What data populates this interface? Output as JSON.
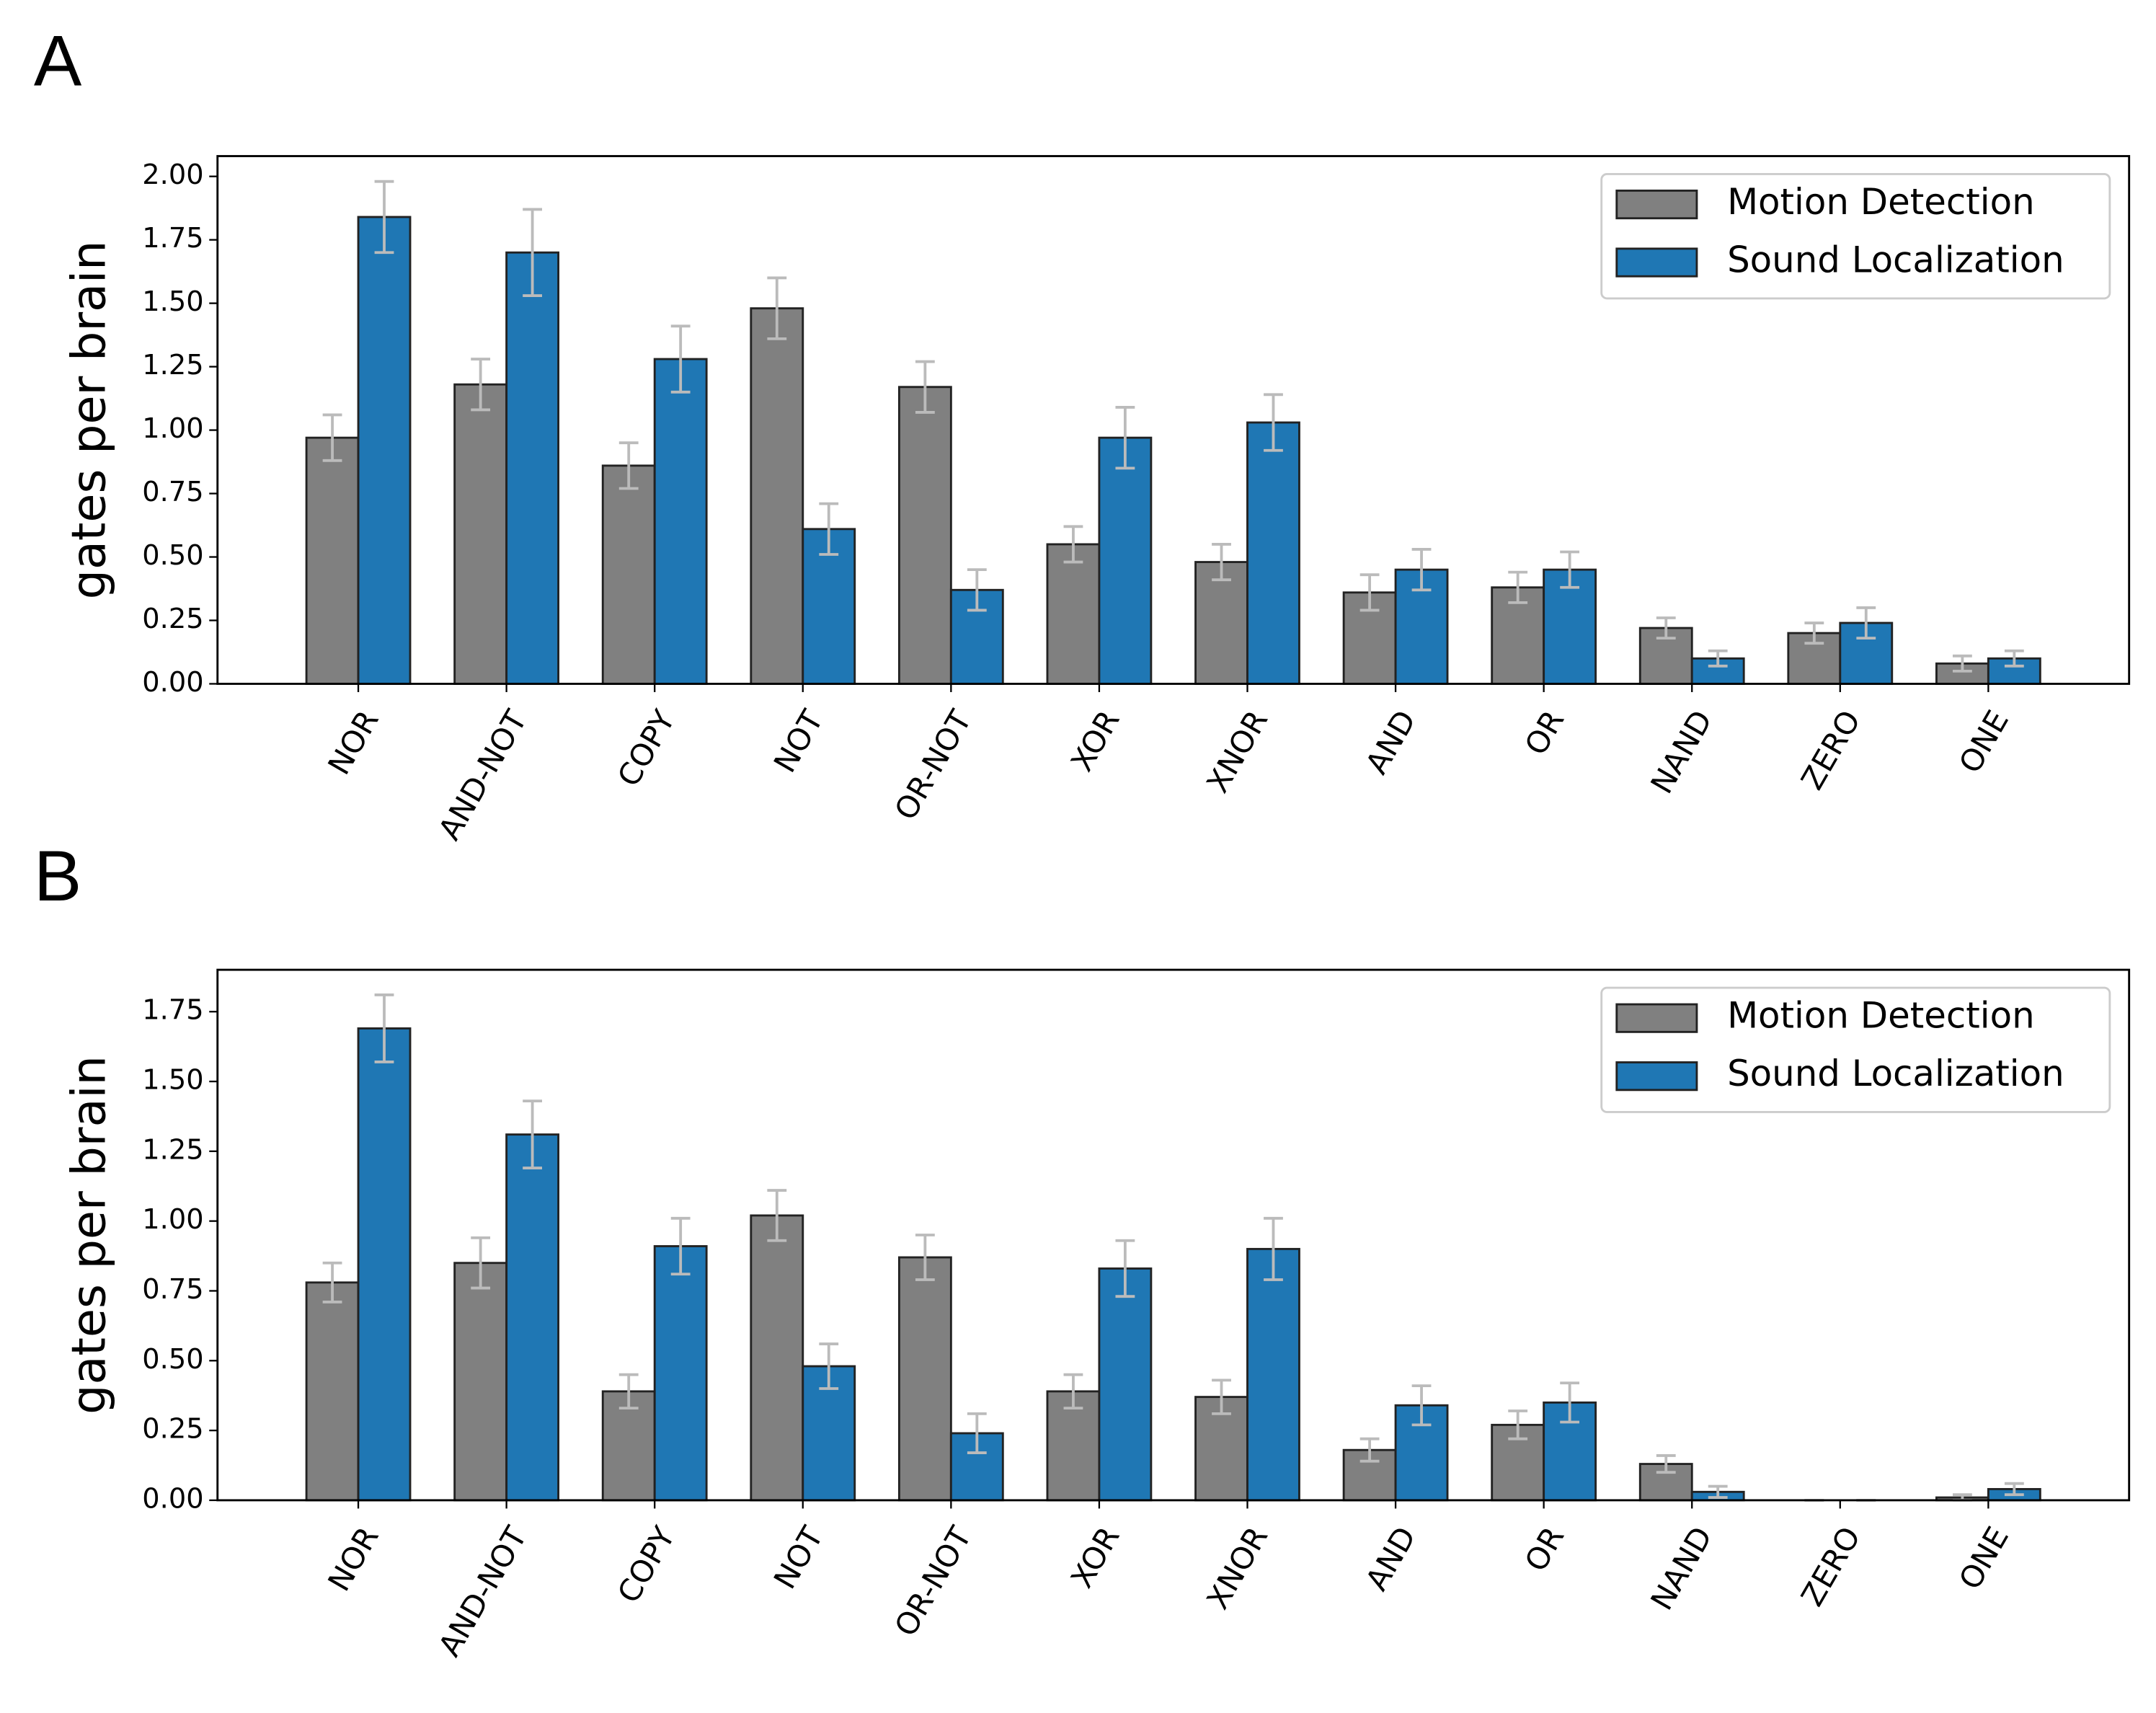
{
  "chart_data": [
    {
      "type": "bar",
      "panel_label": "A",
      "ylabel": "gates per brain",
      "categories": [
        "NOR",
        "AND-NOT",
        "COPY",
        "NOT",
        "OR-NOT",
        "XOR",
        "XNOR",
        "AND",
        "OR",
        "NAND",
        "ZERO",
        "ONE"
      ],
      "series": [
        {
          "name": "Motion Detection",
          "color": "#808080",
          "values": [
            0.97,
            1.18,
            0.86,
            1.48,
            1.17,
            0.55,
            0.48,
            0.36,
            0.38,
            0.22,
            0.2,
            0.08
          ],
          "errors": [
            0.09,
            0.1,
            0.09,
            0.12,
            0.1,
            0.07,
            0.07,
            0.07,
            0.06,
            0.04,
            0.04,
            0.03
          ]
        },
        {
          "name": "Sound Localization",
          "color": "#1f77b4",
          "values": [
            1.84,
            1.7,
            1.28,
            0.61,
            0.37,
            0.97,
            1.03,
            0.45,
            0.45,
            0.1,
            0.24,
            0.1
          ],
          "errors": [
            0.14,
            0.17,
            0.13,
            0.1,
            0.08,
            0.12,
            0.11,
            0.08,
            0.07,
            0.03,
            0.06,
            0.03
          ]
        }
      ],
      "error_color": "#bbbbbb",
      "edge_color": "#222222",
      "ylim": [
        0,
        2.08
      ],
      "yticks": [
        {
          "value": 0,
          "label": "0.00"
        },
        {
          "value": 0.25,
          "label": "0.25"
        },
        {
          "value": 0.5,
          "label": "0.50"
        },
        {
          "value": 0.75,
          "label": "0.75"
        },
        {
          "value": 1,
          "label": "1.00"
        },
        {
          "value": 1.25,
          "label": "1.25"
        },
        {
          "value": 1.5,
          "label": "1.50"
        },
        {
          "value": 1.75,
          "label": "1.75"
        },
        {
          "value": 2,
          "label": "2.00"
        }
      ],
      "legend": "upper right",
      "grid": false
    },
    {
      "type": "bar",
      "panel_label": "B",
      "ylabel": "gates per brain",
      "categories": [
        "NOR",
        "AND-NOT",
        "COPY",
        "NOT",
        "OR-NOT",
        "XOR",
        "XNOR",
        "AND",
        "OR",
        "NAND",
        "ZERO",
        "ONE"
      ],
      "series": [
        {
          "name": "Motion Detection",
          "color": "#808080",
          "values": [
            0.78,
            0.85,
            0.39,
            1.02,
            0.87,
            0.39,
            0.37,
            0.18,
            0.27,
            0.13,
            0,
            0.01
          ],
          "errors": [
            0.07,
            0.09,
            0.06,
            0.09,
            0.08,
            0.06,
            0.06,
            0.04,
            0.05,
            0.03,
            0,
            0.01
          ]
        },
        {
          "name": "Sound Localization",
          "color": "#1f77b4",
          "values": [
            1.69,
            1.31,
            0.91,
            0.48,
            0.24,
            0.83,
            0.9,
            0.34,
            0.35,
            0.03,
            0,
            0.04
          ],
          "errors": [
            0.12,
            0.12,
            0.1,
            0.08,
            0.07,
            0.1,
            0.11,
            0.07,
            0.07,
            0.02,
            0,
            0.02
          ]
        }
      ],
      "error_color": "#bbbbbb",
      "edge_color": "#222222",
      "ylim": [
        0,
        1.9
      ],
      "yticks": [
        {
          "value": 0,
          "label": "0.00"
        },
        {
          "value": 0.25,
          "label": "0.25"
        },
        {
          "value": 0.5,
          "label": "0.50"
        },
        {
          "value": 0.75,
          "label": "0.75"
        },
        {
          "value": 1,
          "label": "1.00"
        },
        {
          "value": 1.25,
          "label": "1.25"
        },
        {
          "value": 1.5,
          "label": "1.50"
        },
        {
          "value": 1.75,
          "label": "1.75"
        }
      ],
      "legend": "upper right",
      "grid": false
    }
  ]
}
